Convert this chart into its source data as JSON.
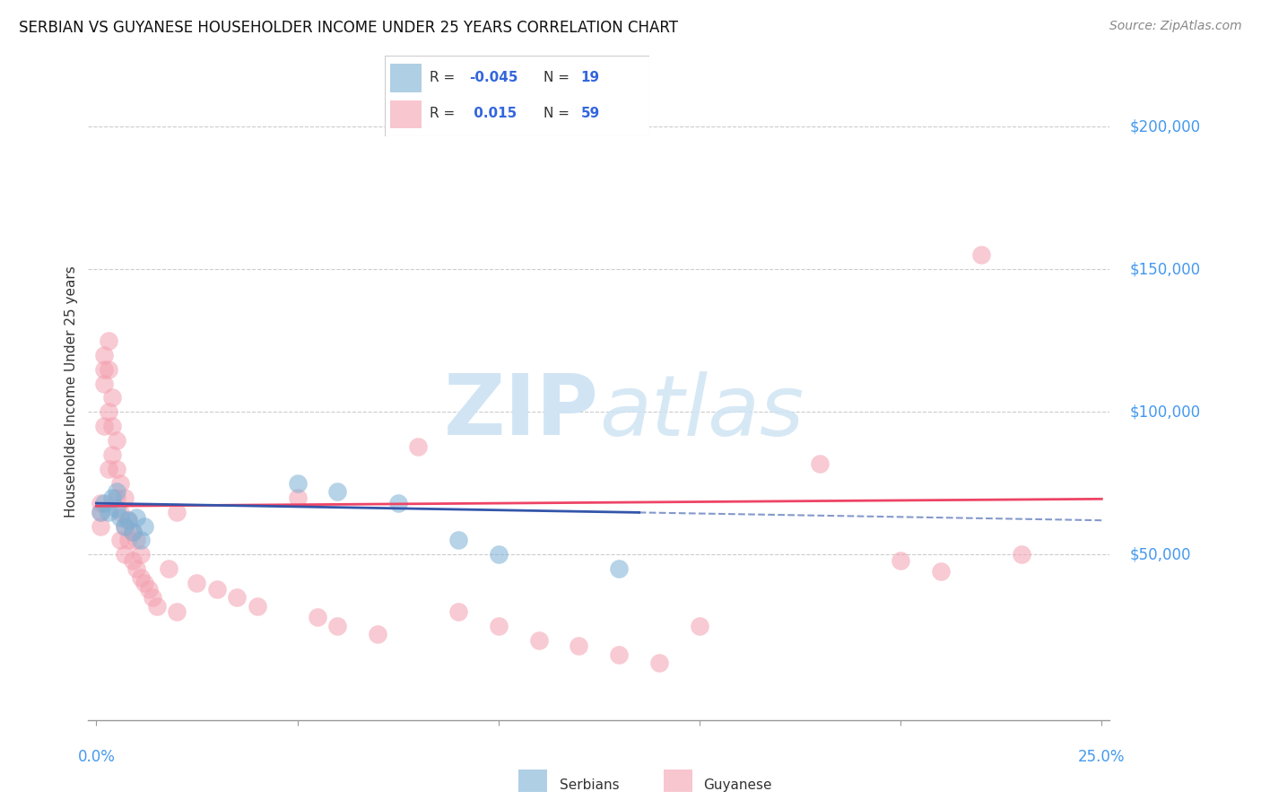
{
  "title": "SERBIAN VS GUYANESE HOUSEHOLDER INCOME UNDER 25 YEARS CORRELATION CHART",
  "source": "Source: ZipAtlas.com",
  "ylabel": "Householder Income Under 25 years",
  "ytick_labels": [
    "$50,000",
    "$100,000",
    "$150,000",
    "$200,000"
  ],
  "ytick_values": [
    50000,
    100000,
    150000,
    200000
  ],
  "xlim": [
    0.0,
    0.25
  ],
  "ylim": [
    0,
    220000
  ],
  "serbian_color": "#7BAFD4",
  "guyanese_color": "#F4A0B0",
  "serbian_line_color": "#3355AA",
  "guyanese_line_color": "#EE4466",
  "serbian_line_dash_color": "#99BBDD",
  "watermark_color": "#D0E4F4",
  "serbian_x": [
    0.001,
    0.002,
    0.003,
    0.004,
    0.005,
    0.005,
    0.006,
    0.007,
    0.008,
    0.009,
    0.01,
    0.011,
    0.012,
    0.05,
    0.06,
    0.075,
    0.09,
    0.1,
    0.13
  ],
  "serbian_y": [
    65000,
    68000,
    65000,
    70000,
    72000,
    66000,
    63000,
    60000,
    62000,
    58000,
    63000,
    55000,
    60000,
    75000,
    72000,
    68000,
    55000,
    50000,
    45000
  ],
  "guyanese_x": [
    0.001,
    0.001,
    0.001,
    0.002,
    0.002,
    0.002,
    0.002,
    0.003,
    0.003,
    0.003,
    0.003,
    0.004,
    0.004,
    0.004,
    0.005,
    0.005,
    0.005,
    0.006,
    0.006,
    0.006,
    0.007,
    0.007,
    0.007,
    0.008,
    0.008,
    0.009,
    0.009,
    0.01,
    0.01,
    0.011,
    0.011,
    0.012,
    0.013,
    0.014,
    0.015,
    0.018,
    0.02,
    0.02,
    0.025,
    0.03,
    0.035,
    0.04,
    0.05,
    0.055,
    0.06,
    0.07,
    0.08,
    0.09,
    0.1,
    0.11,
    0.12,
    0.13,
    0.14,
    0.15,
    0.18,
    0.2,
    0.21,
    0.22,
    0.23
  ],
  "guyanese_y": [
    68000,
    65000,
    60000,
    120000,
    115000,
    110000,
    95000,
    125000,
    115000,
    100000,
    80000,
    105000,
    95000,
    85000,
    90000,
    80000,
    70000,
    75000,
    65000,
    55000,
    70000,
    60000,
    50000,
    62000,
    55000,
    58000,
    48000,
    55000,
    45000,
    50000,
    42000,
    40000,
    38000,
    35000,
    32000,
    45000,
    65000,
    30000,
    40000,
    38000,
    35000,
    32000,
    70000,
    28000,
    25000,
    22000,
    88000,
    30000,
    25000,
    20000,
    18000,
    15000,
    12000,
    25000,
    82000,
    48000,
    44000,
    155000,
    50000
  ],
  "legend_srb_r": "-0.045",
  "legend_srb_n": "19",
  "legend_guy_r": "0.015",
  "legend_guy_n": "59"
}
